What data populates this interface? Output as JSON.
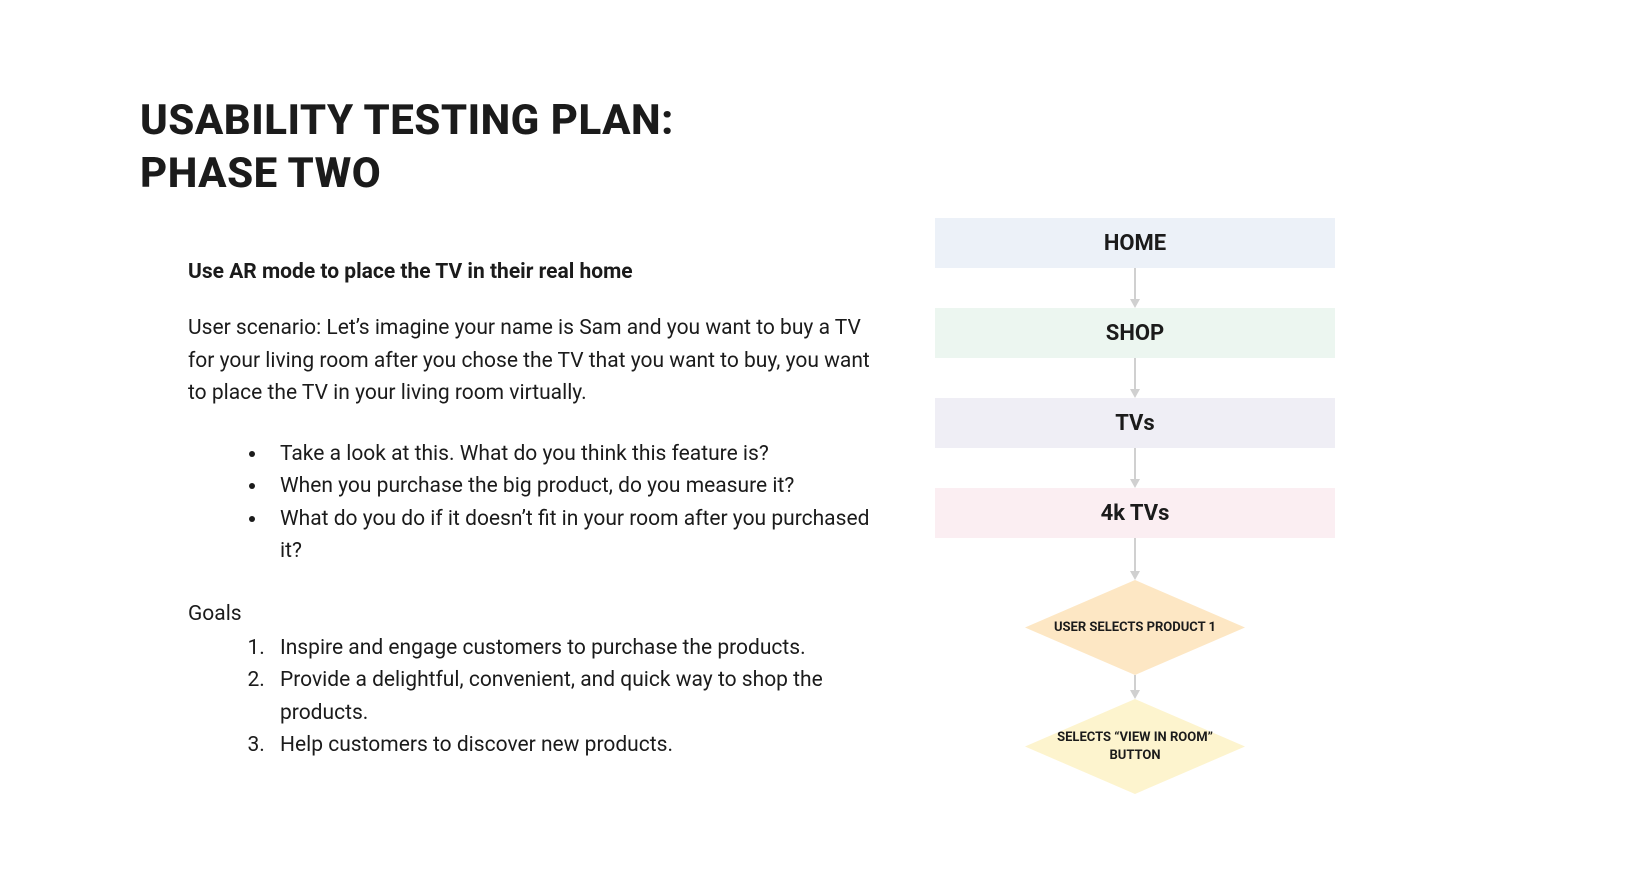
{
  "title_line1": "USABILITY TESTING PLAN:",
  "title_line2": "PHASE TWO",
  "subtitle": "Use AR mode to place the TV in their real home",
  "scenario": "User scenario: Let’s imagine your name is Sam and you want to buy a TV for your living room after you chose the TV that you want to buy, you want to place the TV in your living room virtually.",
  "bullets": [
    "Take a look at this. What do you think this feature is?",
    "When you purchase the big product, do you measure it?",
    "What do you do if it doesn’t fit in your room after you purchased it?"
  ],
  "goals_label": "Goals",
  "goals": [
    "Inspire and engage customers to purchase the products.",
    "Provide a delightful, convenient, and quick way to shop the products.",
    "Help customers to discover new products."
  ],
  "flowchart": {
    "type": "flowchart",
    "arrow_color": "#d0d0d0",
    "arrow_heights": [
      40,
      40,
      40,
      42,
      24
    ],
    "nodes": [
      {
        "shape": "rect",
        "label": "HOME",
        "bg": "#ecf1f8",
        "font_size": 22,
        "font_weight": 700
      },
      {
        "shape": "rect",
        "label": "SHOP",
        "bg": "#ecf6f0",
        "font_size": 22,
        "font_weight": 700
      },
      {
        "shape": "rect",
        "label": "TVs",
        "bg": "#efeef5",
        "font_size": 22,
        "font_weight": 700
      },
      {
        "shape": "rect",
        "label": "4k TVs",
        "bg": "#fbeef2",
        "font_size": 22,
        "font_weight": 700
      },
      {
        "shape": "diamond",
        "label": "USER SELECTS PRODUCT 1",
        "bg": "#fde7c4",
        "font_size": 13,
        "font_weight": 700
      },
      {
        "shape": "diamond",
        "label": "SELECTS “VIEW IN ROOM” BUTTON",
        "bg": "#fdf4ce",
        "font_size": 13,
        "font_weight": 700
      }
    ]
  }
}
